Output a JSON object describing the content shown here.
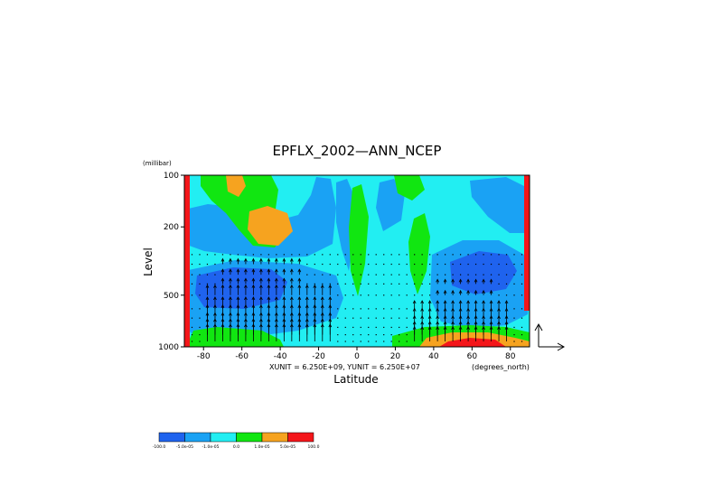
{
  "chart_data": {
    "type": "heatmap",
    "title": "EPFLX_2002—ANN_NCEP",
    "xlabel": "Latitude",
    "ylabel": "Level",
    "y_unit": "(millibar)",
    "x_unit": "(degrees_north)",
    "vector_scale_text": "XUNIT = 6.250E+09, YUNIT = 6.250E+07",
    "xlim": [
      -90,
      90
    ],
    "ylim": [
      1000,
      100
    ],
    "y_scale": "log",
    "x_ticks": [
      -80,
      -60,
      -40,
      -20,
      0,
      20,
      40,
      60,
      80
    ],
    "x_tick_labels": [
      "-80",
      "-60",
      "-40",
      "-20",
      "0",
      "20",
      "40",
      "60",
      "80"
    ],
    "y_ticks": [
      100,
      200,
      500,
      1000
    ],
    "y_tick_labels": [
      "100",
      "200",
      "500",
      "1000"
    ],
    "levels": [
      -100.0,
      -5e-05,
      -1e-05,
      0.0,
      1e-05,
      5e-05,
      100.0
    ],
    "colorbar_labels": [
      "-100.0",
      "-5.0e-05",
      "-1.0e-05",
      "0.0",
      "1.0e-05",
      "5.0e-05",
      "100.0"
    ],
    "colors": [
      "#1f63ee",
      "#1aa2f4",
      "#22eef2",
      "#11e611",
      "#f6a31f",
      "#f4161a"
    ],
    "vector_levels_mb": [
      290,
      330,
      380,
      430,
      500,
      600,
      680,
      770,
      850,
      930
    ],
    "regions": [
      {
        "name": "background",
        "level": 2
      },
      {
        "name": "sh-lower-blue-tongue",
        "level": 1
      },
      {
        "name": "sh-deep-blue-core",
        "level": 0
      },
      {
        "name": "sh-upper-blue",
        "level": 1
      },
      {
        "name": "sh-upper-green",
        "level": 3
      },
      {
        "name": "sh-orange-1",
        "level": 4
      },
      {
        "name": "sh-orange-2",
        "level": 4
      },
      {
        "name": "tropical-blue-1",
        "level": 1
      },
      {
        "name": "tropical-blue-2",
        "level": 1
      },
      {
        "name": "equatorial-green",
        "level": 3
      },
      {
        "name": "nh-green-tongue",
        "level": 3
      },
      {
        "name": "nh-upper-green",
        "level": 3
      },
      {
        "name": "nh-blue",
        "level": 1
      },
      {
        "name": "nh-deep-blue",
        "level": 0
      },
      {
        "name": "nh-blue-right",
        "level": 1
      },
      {
        "name": "nh-surface-green",
        "level": 3
      },
      {
        "name": "nh-surface-orange",
        "level": 4
      },
      {
        "name": "nh-surface-red",
        "level": 5
      },
      {
        "name": "sh-surface-red",
        "level": 5
      },
      {
        "name": "sh-surface-orange",
        "level": 4
      },
      {
        "name": "sh-surface-green",
        "level": 3
      },
      {
        "name": "left-red-strip",
        "level": 5
      },
      {
        "name": "right-red-strip",
        "level": 5
      }
    ]
  }
}
